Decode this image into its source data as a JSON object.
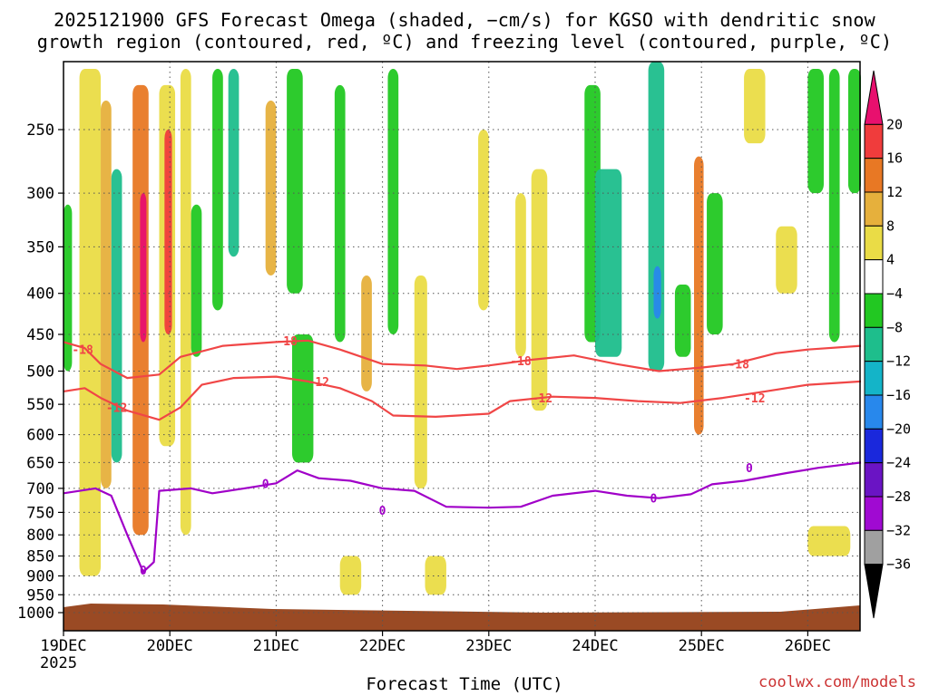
{
  "title_line1": "2025121900 GFS Forecast Omega (shaded, −cm/s) for KGSO with dendritic snow",
  "title_line2": "growth region (contoured, red, ºC) and freezing level (contoured, purple, ºC)",
  "xlabel": "Forecast Time (UTC)",
  "year_label": "2025",
  "credit": "coolwx.com/models",
  "chart_data": {
    "type": "heatmap",
    "y_axis": {
      "label": "",
      "scale": "pressure (log-like)",
      "ticks": [
        250,
        300,
        350,
        400,
        450,
        500,
        550,
        600,
        650,
        700,
        750,
        800,
        850,
        900,
        950,
        1000
      ],
      "range": [
        200,
        1000
      ]
    },
    "x_axis": {
      "label": "Forecast Time (UTC)",
      "ticks": [
        "19DEC",
        "20DEC",
        "21DEC",
        "22DEC",
        "23DEC",
        "24DEC",
        "25DEC",
        "26DEC"
      ],
      "range_days": [
        0,
        7.5
      ]
    },
    "grid": true,
    "colorbar": {
      "labels": [
        "20",
        "16",
        "12",
        "8",
        "4",
        "−4",
        "−8",
        "−12",
        "−16",
        "−20",
        "−24",
        "−28",
        "−32",
        "−36"
      ],
      "colors": [
        "#e8106e",
        "#f03c3c",
        "#e87824",
        "#e6b03c",
        "#eadc46",
        "#ffffff",
        "#22c822",
        "#1ebe8c",
        "#14b4c8",
        "#2888ec",
        "#1a28dc",
        "#6a14c4",
        "#a00ad2",
        "#a0a0a0",
        "#000000"
      ]
    },
    "contours": [
      {
        "name": "-18",
        "color": "#f04646",
        "points": [
          [
            0,
            460
          ],
          [
            0.2,
            468
          ],
          [
            0.35,
            490
          ],
          [
            0.6,
            510
          ],
          [
            0.9,
            505
          ],
          [
            1.1,
            480
          ],
          [
            1.5,
            465
          ],
          [
            2,
            460
          ],
          [
            2.3,
            458
          ],
          [
            2.6,
            470
          ],
          [
            3,
            490
          ],
          [
            3.4,
            492
          ],
          [
            3.7,
            497
          ],
          [
            4,
            492
          ],
          [
            4.4,
            484
          ],
          [
            4.8,
            478
          ],
          [
            5.2,
            490
          ],
          [
            5.6,
            500
          ],
          [
            6,
            495
          ],
          [
            6.3,
            490
          ],
          [
            6.7,
            475
          ],
          [
            7,
            470
          ],
          [
            7.5,
            465
          ]
        ]
      },
      {
        "name": "-12",
        "color": "#f04646",
        "points": [
          [
            0,
            530
          ],
          [
            0.2,
            525
          ],
          [
            0.35,
            540
          ],
          [
            0.6,
            560
          ],
          [
            0.9,
            575
          ],
          [
            1.1,
            555
          ],
          [
            1.3,
            520
          ],
          [
            1.6,
            510
          ],
          [
            2,
            508
          ],
          [
            2.3,
            515
          ],
          [
            2.6,
            525
          ],
          [
            2.9,
            545
          ],
          [
            3.1,
            568
          ],
          [
            3.5,
            570
          ],
          [
            4,
            565
          ],
          [
            4.2,
            545
          ],
          [
            4.6,
            538
          ],
          [
            5,
            540
          ],
          [
            5.4,
            545
          ],
          [
            5.8,
            548
          ],
          [
            6.2,
            540
          ],
          [
            6.6,
            530
          ],
          [
            7,
            520
          ],
          [
            7.5,
            515
          ]
        ]
      },
      {
        "name": "0",
        "color": "#a000c8",
        "points": [
          [
            0,
            710
          ],
          [
            0.3,
            700
          ],
          [
            0.45,
            715
          ],
          [
            0.6,
            800
          ],
          [
            0.75,
            890
          ],
          [
            0.85,
            865
          ],
          [
            0.9,
            705
          ],
          [
            1.2,
            700
          ],
          [
            1.4,
            710
          ],
          [
            1.7,
            700
          ],
          [
            2,
            690
          ],
          [
            2.2,
            665
          ],
          [
            2.4,
            680
          ],
          [
            2.7,
            685
          ],
          [
            3,
            700
          ],
          [
            3.3,
            705
          ],
          [
            3.6,
            738
          ],
          [
            4,
            740
          ],
          [
            4.3,
            738
          ],
          [
            4.6,
            715
          ],
          [
            5,
            705
          ],
          [
            5.3,
            715
          ],
          [
            5.6,
            720
          ],
          [
            5.9,
            712
          ],
          [
            6.1,
            692
          ],
          [
            6.4,
            685
          ],
          [
            6.8,
            670
          ],
          [
            7.1,
            660
          ],
          [
            7.5,
            650
          ]
        ]
      }
    ],
    "contour_labels": [
      {
        "text": "-18",
        "d": 0.18,
        "p": 470
      },
      {
        "text": "-18",
        "d": 2.1,
        "p": 458
      },
      {
        "text": "-18",
        "d": 4.3,
        "p": 485
      },
      {
        "text": "-18",
        "d": 6.35,
        "p": 490
      },
      {
        "text": "-12",
        "d": 0.5,
        "p": 555
      },
      {
        "text": "-12",
        "d": 2.4,
        "p": 515
      },
      {
        "text": "-12",
        "d": 4.5,
        "p": 540
      },
      {
        "text": "-12",
        "d": 6.5,
        "p": 540
      },
      {
        "text": "0",
        "d": 1.9,
        "p": 690
      },
      {
        "text": "0",
        "d": 3.0,
        "p": 745
      },
      {
        "text": "0",
        "d": 5.55,
        "p": 720
      },
      {
        "text": "0",
        "d": 6.45,
        "p": 660
      },
      {
        "text": "0",
        "d": 0.75,
        "p": 885
      }
    ],
    "shaded_patches": [
      {
        "d0": 0.0,
        "d1": 0.08,
        "p0": 310,
        "p1": 500,
        "v": -8
      },
      {
        "d0": 0.15,
        "d1": 0.35,
        "p0": 210,
        "p1": 900,
        "v": 4
      },
      {
        "d0": 0.35,
        "d1": 0.45,
        "p0": 230,
        "p1": 700,
        "v": 8
      },
      {
        "d0": 0.45,
        "d1": 0.55,
        "p0": 280,
        "p1": 650,
        "v": -12
      },
      {
        "d0": 0.65,
        "d1": 0.8,
        "p0": 220,
        "p1": 800,
        "v": 12
      },
      {
        "d0": 0.72,
        "d1": 0.78,
        "p0": 300,
        "p1": 460,
        "v": 20
      },
      {
        "d0": 0.9,
        "d1": 1.05,
        "p0": 220,
        "p1": 620,
        "v": 4
      },
      {
        "d0": 0.95,
        "d1": 1.02,
        "p0": 250,
        "p1": 450,
        "v": 16
      },
      {
        "d0": 1.1,
        "d1": 1.2,
        "p0": 210,
        "p1": 800,
        "v": 4
      },
      {
        "d0": 1.2,
        "d1": 1.3,
        "p0": 310,
        "p1": 480,
        "v": -8
      },
      {
        "d0": 1.4,
        "d1": 1.5,
        "p0": 210,
        "p1": 420,
        "v": -8
      },
      {
        "d0": 1.55,
        "d1": 1.65,
        "p0": 210,
        "p1": 360,
        "v": -12
      },
      {
        "d0": 1.9,
        "d1": 2.0,
        "p0": 230,
        "p1": 380,
        "v": 8
      },
      {
        "d0": 2.1,
        "d1": 2.25,
        "p0": 210,
        "p1": 400,
        "v": -8
      },
      {
        "d0": 2.15,
        "d1": 2.35,
        "p0": 450,
        "p1": 650,
        "v": -8
      },
      {
        "d0": 2.55,
        "d1": 2.65,
        "p0": 220,
        "p1": 460,
        "v": -8
      },
      {
        "d0": 2.8,
        "d1": 2.9,
        "p0": 380,
        "p1": 530,
        "v": 8
      },
      {
        "d0": 3.05,
        "d1": 3.15,
        "p0": 210,
        "p1": 450,
        "v": -8
      },
      {
        "d0": 3.3,
        "d1": 3.42,
        "p0": 380,
        "p1": 700,
        "v": 4
      },
      {
        "d0": 3.9,
        "d1": 4.0,
        "p0": 250,
        "p1": 420,
        "v": 4
      },
      {
        "d0": 4.25,
        "d1": 4.35,
        "p0": 300,
        "p1": 480,
        "v": 4
      },
      {
        "d0": 4.4,
        "d1": 4.55,
        "p0": 280,
        "p1": 560,
        "v": 4
      },
      {
        "d0": 4.9,
        "d1": 5.05,
        "p0": 220,
        "p1": 460,
        "v": -8
      },
      {
        "d0": 5.0,
        "d1": 5.25,
        "p0": 280,
        "p1": 480,
        "v": -12
      },
      {
        "d0": 5.5,
        "d1": 5.65,
        "p0": 200,
        "p1": 500,
        "v": -12
      },
      {
        "d0": 5.55,
        "d1": 5.62,
        "p0": 370,
        "p1": 430,
        "v": -20
      },
      {
        "d0": 5.75,
        "d1": 5.9,
        "p0": 390,
        "p1": 480,
        "v": -8
      },
      {
        "d0": 5.93,
        "d1": 6.02,
        "p0": 270,
        "p1": 600,
        "v": 12
      },
      {
        "d0": 6.05,
        "d1": 6.2,
        "p0": 300,
        "p1": 450,
        "v": -8
      },
      {
        "d0": 6.4,
        "d1": 6.6,
        "p0": 210,
        "p1": 260,
        "v": 4
      },
      {
        "d0": 6.7,
        "d1": 6.9,
        "p0": 330,
        "p1": 400,
        "v": 4
      },
      {
        "d0": 7.0,
        "d1": 7.15,
        "p0": 210,
        "p1": 300,
        "v": -8
      },
      {
        "d0": 7.2,
        "d1": 7.3,
        "p0": 210,
        "p1": 460,
        "v": -8
      },
      {
        "d0": 7.38,
        "d1": 7.5,
        "p0": 210,
        "p1": 300,
        "v": -8
      },
      {
        "d0": 3.4,
        "d1": 3.6,
        "p0": 850,
        "p1": 950,
        "v": 4
      },
      {
        "d0": 2.6,
        "d1": 2.8,
        "p0": 850,
        "p1": 950,
        "v": 4
      },
      {
        "d0": 7.0,
        "d1": 7.4,
        "p0": 780,
        "p1": 850,
        "v": 4
      }
    ],
    "surface_color": "#9a4a24"
  }
}
